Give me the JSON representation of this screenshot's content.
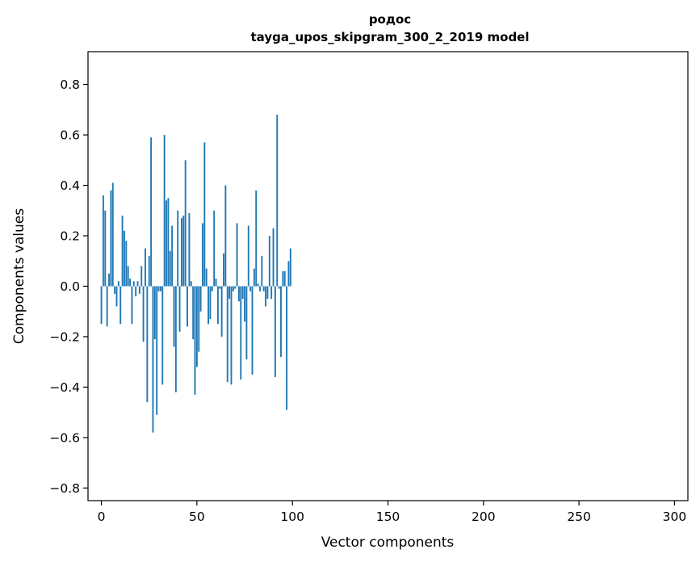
{
  "chart_data": {
    "type": "bar",
    "title": "родос",
    "subtitle": "tayga_upos_skipgram_300_2_2019 model",
    "xlabel": "Vector components",
    "ylabel": "Components values",
    "xlim": [
      -7,
      307
    ],
    "ylim": [
      -0.85,
      0.93
    ],
    "xticks": [
      0,
      50,
      100,
      150,
      200,
      250,
      300
    ],
    "yticks": [
      -0.8,
      -0.6,
      -0.4,
      -0.2,
      0.0,
      0.2,
      0.4,
      0.6,
      0.8
    ],
    "color": "#1f77b4",
    "values": [
      -0.15,
      0.36,
      0.3,
      -0.16,
      0.05,
      0.38,
      0.41,
      -0.03,
      -0.08,
      0.02,
      -0.15,
      0.28,
      0.22,
      0.18,
      0.08,
      0.03,
      -0.15,
      0.02,
      -0.04,
      0.02,
      -0.03,
      0.08,
      -0.22,
      0.15,
      -0.46,
      0.12,
      0.59,
      -0.58,
      -0.21,
      -0.51,
      -0.02,
      -0.02,
      -0.39,
      0.6,
      0.34,
      0.35,
      0.14,
      0.24,
      -0.24,
      -0.42,
      0.3,
      -0.18,
      0.27,
      0.28,
      0.5,
      -0.16,
      0.29,
      0.02,
      -0.21,
      -0.43,
      -0.32,
      -0.26,
      -0.1,
      0.25,
      0.57,
      0.07,
      -0.15,
      -0.13,
      -0.02,
      0.3,
      0.03,
      -0.15,
      -0.01,
      -0.2,
      0.13,
      0.4,
      -0.38,
      -0.05,
      -0.39,
      -0.02,
      -0.01,
      0.25,
      -0.06,
      -0.37,
      -0.05,
      -0.14,
      -0.29,
      0.24,
      -0.02,
      -0.35,
      0.07,
      0.38,
      0.01,
      -0.02,
      0.12,
      -0.02,
      -0.08,
      -0.05,
      0.2,
      -0.05,
      0.23,
      -0.36,
      0.68,
      -0.01,
      -0.28,
      0.06,
      0.06,
      -0.49,
      0.1,
      0.15
    ]
  }
}
